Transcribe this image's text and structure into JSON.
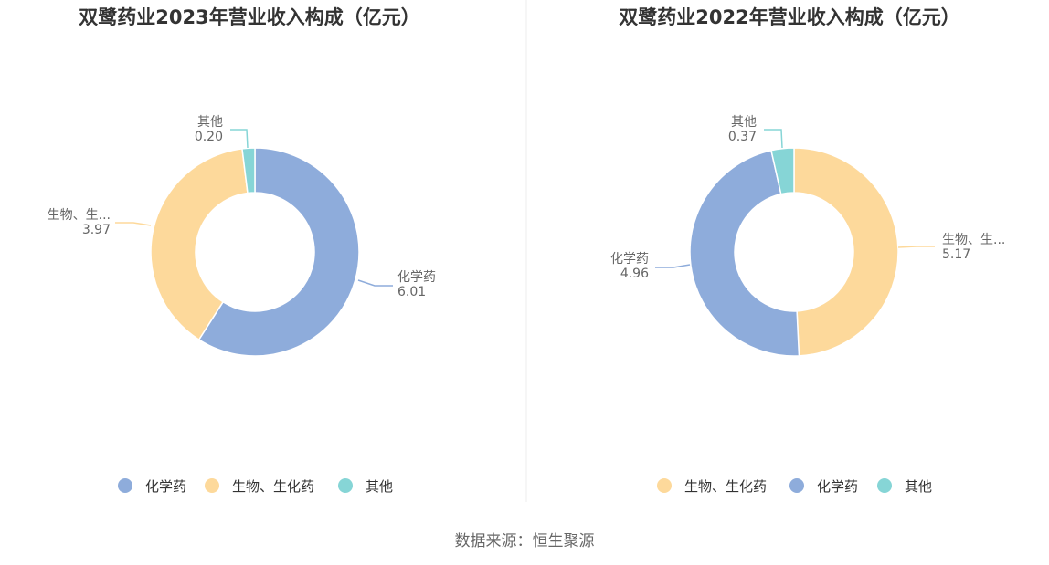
{
  "charts": [
    {
      "title": "双鹭药业2023年营业收入构成（亿元）",
      "labels": [
        {
          "name": "化学药",
          "value": "6.01"
        },
        {
          "name": "生物、生...",
          "value": "3.97"
        },
        {
          "name": "其他",
          "value": "0.20"
        }
      ],
      "legend": [
        "化学药",
        "生物、生化药",
        "其他"
      ]
    },
    {
      "title": "双鹭药业2022年营业收入构成（亿元）",
      "labels": [
        {
          "name": "生物、生...",
          "value": "5.17"
        },
        {
          "name": "化学药",
          "value": "4.96"
        },
        {
          "name": "其他",
          "value": "0.37"
        }
      ],
      "legend": [
        "生物、生化药",
        "化学药",
        "其他"
      ]
    }
  ],
  "source": "数据来源：恒生聚源",
  "chart_data": [
    {
      "type": "pie",
      "title": "双鹭药业2023年营业收入构成（亿元）",
      "categories": [
        "化学药",
        "生物、生化药",
        "其他"
      ],
      "values": [
        6.01,
        3.97,
        0.2
      ],
      "colors": [
        "#8eacdb",
        "#fdd99b",
        "#86d5d6"
      ],
      "donut": true,
      "legend": "bottom"
    },
    {
      "type": "pie",
      "title": "双鹭药业2022年营业收入构成（亿元）",
      "categories": [
        "生物、生化药",
        "化学药",
        "其他"
      ],
      "values": [
        5.17,
        4.96,
        0.37
      ],
      "colors": [
        "#fdd99b",
        "#8eacdb",
        "#86d5d6"
      ],
      "donut": true,
      "legend": "bottom"
    }
  ]
}
